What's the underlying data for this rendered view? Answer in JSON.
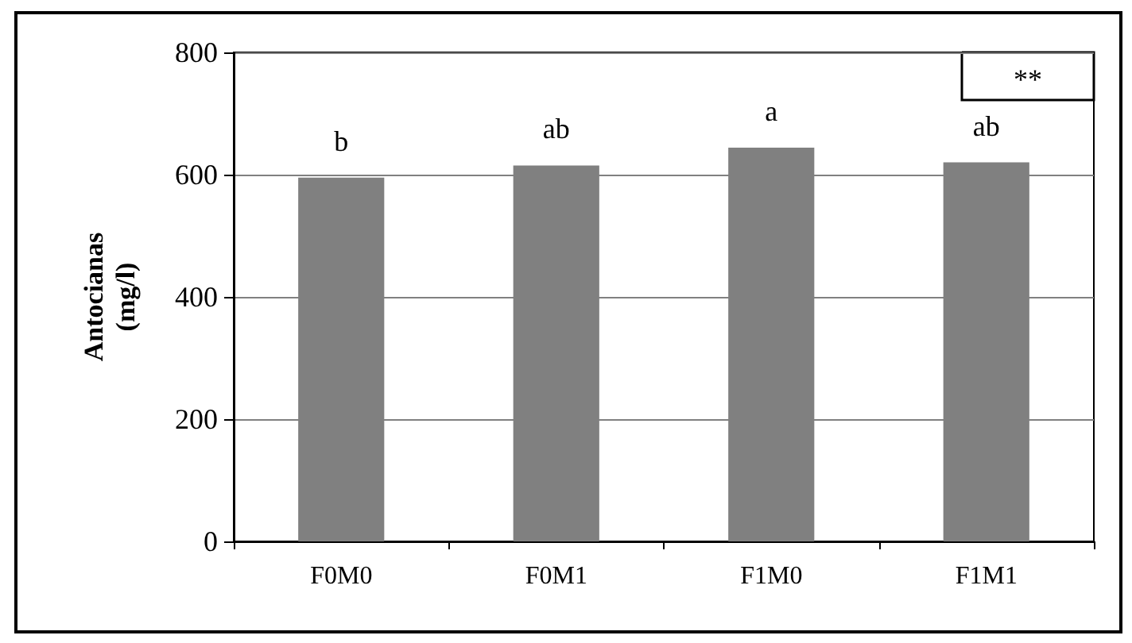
{
  "chart_data": {
    "type": "bar",
    "ylabel": "Antocianas\n(mg/l)",
    "categories": [
      "F0M0",
      "F0M1",
      "F1M0",
      "F1M1"
    ],
    "values": [
      595,
      615,
      644,
      620
    ],
    "color": "#808080",
    "ylim": [
      0,
      800
    ],
    "yticks": [
      0,
      200,
      400,
      600,
      800
    ],
    "grid": "y",
    "annotations": [
      {
        "text": "b",
        "x": "F0M0",
        "y": 595
      },
      {
        "text": "ab",
        "x": "F0M1",
        "y": 615
      },
      {
        "text": "a",
        "x": "F1M0",
        "y": 644
      },
      {
        "text": "ab",
        "x": "F1M1",
        "y": 620
      },
      "**"
    ]
  }
}
